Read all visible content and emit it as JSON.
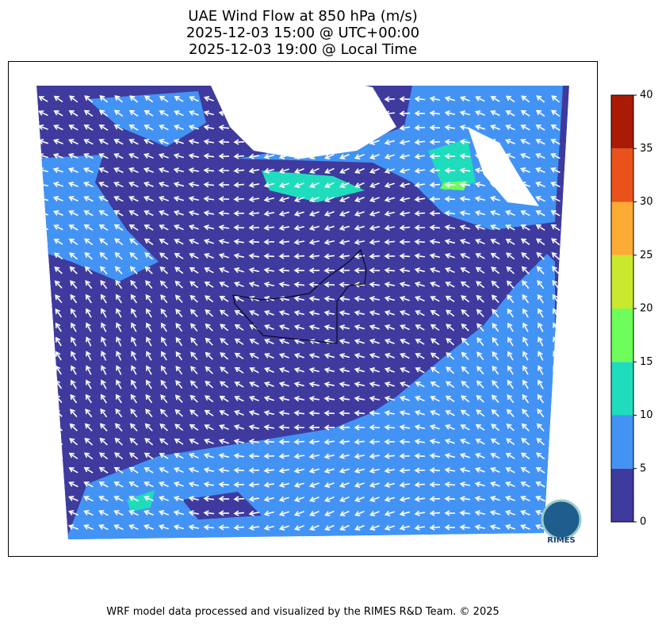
{
  "title": [
    "UAE Wind Flow at 850 hPa (m/s)",
    "2025-12-03 15:00 @ UTC+00:00",
    "2025-12-03 19:00 @ Local Time"
  ],
  "colorbar": {
    "lim": [
      0,
      40
    ],
    "ticks": [
      0,
      5,
      10,
      15,
      20,
      25,
      30,
      35,
      40
    ],
    "colors": [
      "#3f3a9e",
      "#4393f5",
      "#1fdcbc",
      "#6efd5a",
      "#c9e82e",
      "#fcab35",
      "#e9521a",
      "#a91b03"
    ]
  },
  "logo": "RIMES",
  "footer": "WRF model data processed and visualized by the RIMES R&D Team. © 2025"
}
